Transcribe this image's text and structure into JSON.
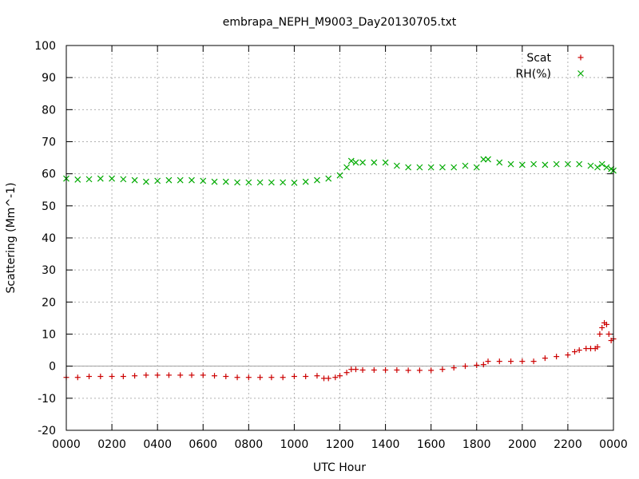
{
  "chart_data": {
    "type": "scatter",
    "title": "embrapa_NEPH_M9003_Day20130705.txt",
    "xlabel": "UTC Hour",
    "ylabel": "Scattering (Mm^-1)",
    "xlim": [
      0,
      2400
    ],
    "ylim": [
      -20,
      100
    ],
    "grid": true,
    "legend_position": "top-right",
    "x_tick_labels": [
      "0000",
      "0200",
      "0400",
      "0600",
      "0800",
      "1000",
      "1200",
      "1400",
      "1600",
      "1800",
      "2000",
      "2200",
      "0000"
    ],
    "y_tick_labels": [
      "-20",
      "-10",
      "0",
      "10",
      "20",
      "30",
      "40",
      "50",
      "60",
      "70",
      "80",
      "90",
      "100"
    ],
    "series": [
      {
        "name": "Scat",
        "marker": "plus",
        "color": "#cc0000",
        "x": [
          0,
          50,
          100,
          150,
          200,
          250,
          300,
          350,
          400,
          450,
          500,
          550,
          600,
          650,
          700,
          750,
          800,
          850,
          900,
          950,
          1000,
          1050,
          1100,
          1130,
          1150,
          1180,
          1200,
          1230,
          1250,
          1270,
          1300,
          1350,
          1400,
          1450,
          1500,
          1550,
          1600,
          1650,
          1700,
          1750,
          1800,
          1830,
          1850,
          1900,
          1950,
          2000,
          2050,
          2100,
          2150,
          2200,
          2230,
          2250,
          2280,
          2300,
          2320,
          2330,
          2340,
          2350,
          2360,
          2370,
          2380,
          2390,
          2400
        ],
        "y": [
          -3.5,
          -3.5,
          -3.2,
          -3.2,
          -3.2,
          -3.2,
          -3.0,
          -2.8,
          -2.8,
          -2.8,
          -2.8,
          -2.8,
          -2.8,
          -3.0,
          -3.2,
          -3.5,
          -3.5,
          -3.5,
          -3.5,
          -3.5,
          -3.2,
          -3.2,
          -3.0,
          -3.8,
          -3.8,
          -3.5,
          -3.0,
          -2.0,
          -1.0,
          -1.0,
          -1.2,
          -1.2,
          -1.2,
          -1.2,
          -1.3,
          -1.3,
          -1.3,
          -1.0,
          -0.5,
          0,
          0.3,
          0.5,
          1.5,
          1.5,
          1.5,
          1.5,
          1.5,
          2.5,
          3.0,
          3.5,
          4.5,
          5.0,
          5.5,
          5.5,
          5.5,
          6.0,
          10.0,
          12.0,
          13.5,
          13.0,
          10.0,
          8.0,
          8.5
        ]
      },
      {
        "name": "RH(%)",
        "marker": "cross",
        "color": "#00aa00",
        "x": [
          0,
          50,
          100,
          150,
          200,
          250,
          300,
          350,
          400,
          450,
          500,
          550,
          600,
          650,
          700,
          750,
          800,
          850,
          900,
          950,
          1000,
          1050,
          1100,
          1150,
          1200,
          1230,
          1250,
          1270,
          1300,
          1350,
          1400,
          1450,
          1500,
          1550,
          1600,
          1650,
          1700,
          1750,
          1800,
          1830,
          1850,
          1900,
          1950,
          2000,
          2050,
          2100,
          2150,
          2200,
          2250,
          2300,
          2330,
          2350,
          2370,
          2390,
          2400
        ],
        "y": [
          58.5,
          58.2,
          58.3,
          58.5,
          58.5,
          58.3,
          58.0,
          57.5,
          57.8,
          58.0,
          58.0,
          58.0,
          57.8,
          57.5,
          57.5,
          57.3,
          57.3,
          57.3,
          57.3,
          57.3,
          57.2,
          57.5,
          58.0,
          58.5,
          59.5,
          62.0,
          64.0,
          63.5,
          63.5,
          63.5,
          63.5,
          62.5,
          62.0,
          62.0,
          62.0,
          62.0,
          62.0,
          62.5,
          62.0,
          64.5,
          64.5,
          63.5,
          63.0,
          62.8,
          63.0,
          62.8,
          63.0,
          63.0,
          63.0,
          62.5,
          62.0,
          63.0,
          62.0,
          61.5,
          61.0
        ]
      }
    ]
  }
}
